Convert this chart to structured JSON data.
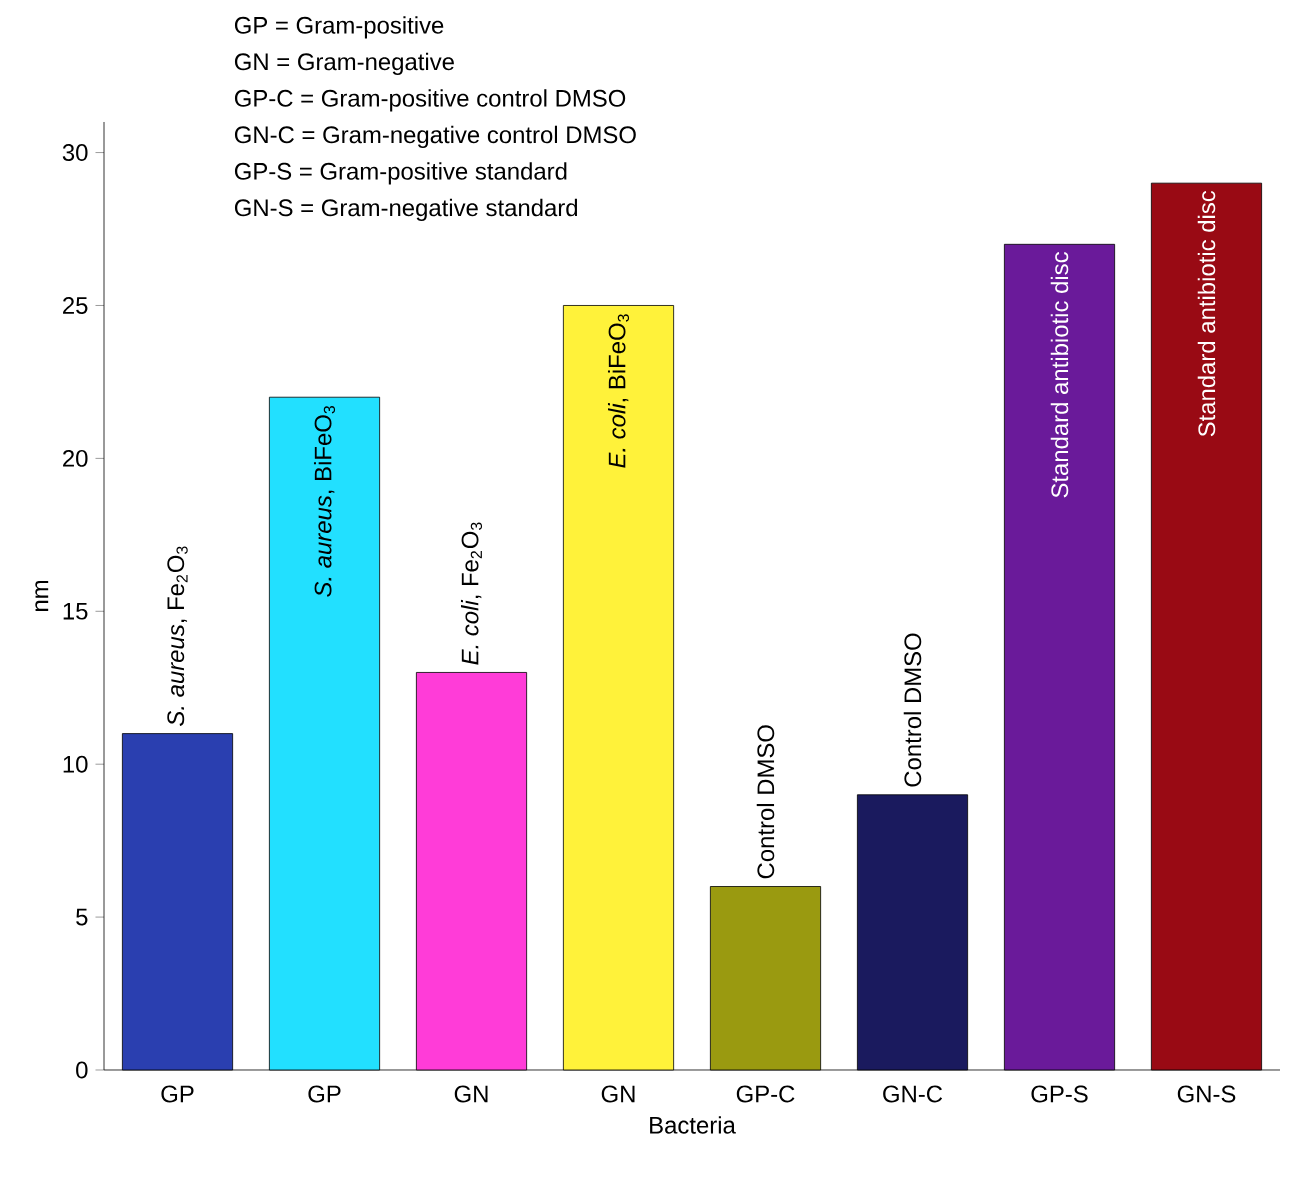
{
  "chart_data": {
    "type": "bar",
    "xlabel": "Bacteria",
    "ylabel": "nm",
    "categories": [
      "GP",
      "GP",
      "GN",
      "GN",
      "GP-C",
      "GN-C",
      "GP-S",
      "GN-S"
    ],
    "values": [
      11,
      22,
      13,
      25,
      6,
      9,
      27,
      29
    ],
    "colors": [
      "#2a3fb0",
      "#22e0ff",
      "#ff3cd8",
      "#fff23a",
      "#9a9a10",
      "#1a1a5e",
      "#6a1a9a",
      "#990a14"
    ],
    "ylim": [
      0,
      31
    ],
    "yticks": [
      0,
      5,
      10,
      15,
      20,
      25,
      30
    ],
    "grid": false,
    "annotations": [
      "GP = Gram-positive",
      "GN = Gram-negative",
      "GP-C = Gram-positive control DMSO",
      "GN-C = Gram-negative control DMSO",
      "GP-S = Gram-positive standard",
      "GN-S = Gram-negative standard",
      "*S. aureus*, Fe$_{2}$O$_{3}$",
      "*S. aureus*, BiFeO$_{3}$",
      "*E. coli*, Fe$_{2}$O$_{3}$",
      "*E. coli*, BiFeO$_{3}$",
      "Control DMSO",
      "Control DMSO",
      "Standard antibiotic disc",
      "Standard antibiotic disc"
    ]
  }
}
